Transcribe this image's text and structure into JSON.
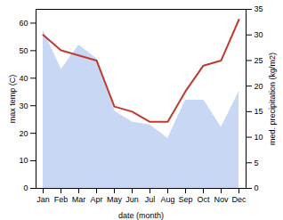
{
  "chart_data": {
    "type": "line",
    "categories": [
      "Jan",
      "Feb",
      "Mar",
      "Apr",
      "May",
      "Jun",
      "Jul",
      "Aug",
      "Sep",
      "Oct",
      "Nov",
      "Dec"
    ],
    "xlabel": "date (month)",
    "ylabel": "max temp (C)",
    "y2label": "med. precipitation (kg/m2)",
    "series": [
      {
        "name": "max temp (C)",
        "type": "area",
        "color": "#c8d8f4",
        "values": [
          57,
          43,
          52,
          47,
          28,
          24,
          23,
          18,
          32,
          32,
          22,
          35
        ]
      },
      {
        "name": "med. precipitation (kg/m2)",
        "type": "line",
        "color": "#c0392b",
        "axis": "y2",
        "values": [
          30,
          27,
          26,
          25,
          16,
          15,
          13,
          13,
          19,
          24,
          25,
          33
        ]
      }
    ],
    "ylim": [
      0,
      65
    ],
    "yticks": [
      0,
      10,
      20,
      30,
      40,
      50,
      60
    ],
    "y2lim": [
      0,
      35
    ],
    "y2ticks": [
      0,
      5,
      10,
      15,
      20,
      25,
      30,
      35
    ],
    "grid": false
  }
}
